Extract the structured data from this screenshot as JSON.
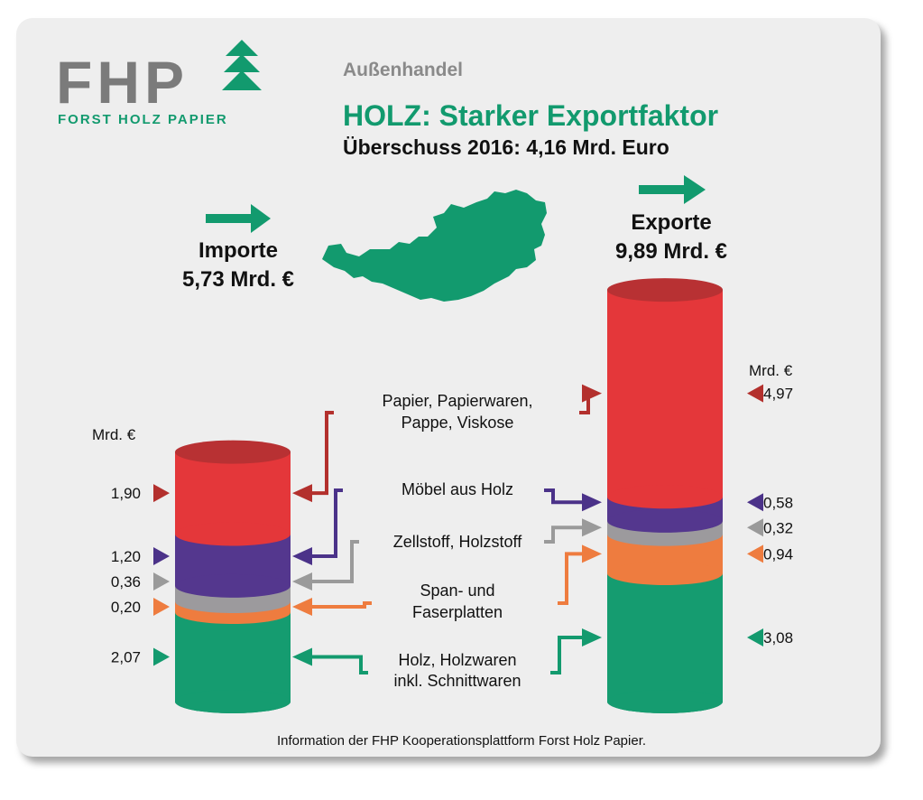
{
  "header": {
    "logo_text": "FHP",
    "logo_subtitle": "FORST HOLZ PAPIER",
    "kicker": "Außenhandel",
    "headline": "HOLZ: Starker Exportfaktor",
    "subheadline": "Überschuss 2016: 4,16 Mrd. Euro"
  },
  "footer": "Information der FHP Kooperationsplattform Forst Holz Papier.",
  "colors": {
    "green": "#129a6e",
    "grey_text": "#7b7b7b",
    "papier": "#e4373a",
    "papier_top": "#b83133",
    "moebel": "#54378e",
    "zellstoff": "#9c9a9d",
    "span": "#ee7c3f",
    "holz": "#159c70",
    "holz_bottom": "#0f8a60",
    "arrow_papier": "#b3302d",
    "arrow_moebel": "#4b3289",
    "arrow_zellstoff": "#9a9a9a",
    "arrow_span": "#ee7c3f",
    "arrow_holz": "#139a6e"
  },
  "chart_data": {
    "type": "stacked-cylinder",
    "unit": "Mrd. €",
    "columns": [
      {
        "name": "Importe",
        "total_label": "5,73 Mrd. €",
        "values": [
          2.07,
          0.2,
          0.36,
          1.2,
          1.9
        ],
        "value_labels": [
          "2,07",
          "0,20",
          "0,36",
          "1,20",
          "1,90"
        ]
      },
      {
        "name": "Exporte",
        "total_label": "9,89 Mrd. €",
        "values": [
          3.08,
          0.94,
          0.32,
          0.58,
          4.97
        ],
        "value_labels": [
          "3,08",
          "0,94",
          "0,32",
          "0,58",
          "4,97"
        ]
      }
    ],
    "categories": [
      {
        "key": "holz",
        "lines": [
          "Holz, Holzwaren",
          "inkl. Schnittwaren"
        ]
      },
      {
        "key": "span",
        "lines": [
          "Span- und",
          "Faserplatten"
        ]
      },
      {
        "key": "zellstoff",
        "lines": [
          "Zellstoff, Holzstoff"
        ]
      },
      {
        "key": "moebel",
        "lines": [
          "Möbel aus Holz"
        ]
      },
      {
        "key": "papier",
        "lines": [
          "Papier, Papierwaren,",
          "Pappe, Viskose"
        ]
      }
    ],
    "unit_label_left": "Mrd. €",
    "unit_label_right": "Mrd. €"
  }
}
